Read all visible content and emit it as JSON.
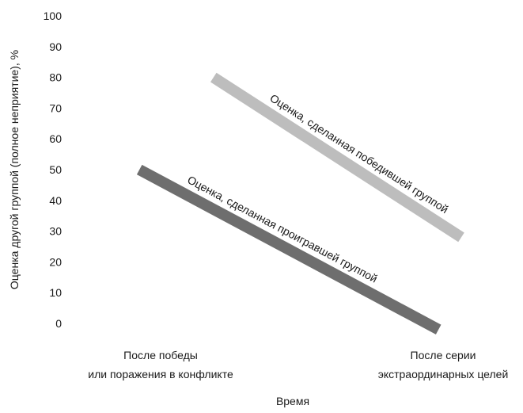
{
  "chart_data": {
    "type": "line",
    "title": "",
    "xlabel": "Время",
    "ylabel": "Оценка другой группой (полное неприятие), %",
    "ylim": [
      0,
      100
    ],
    "yticks": [
      0,
      10,
      20,
      30,
      40,
      50,
      60,
      70,
      80,
      90,
      100
    ],
    "categories": [
      [
        "После победы",
        "или поражения в конфликте"
      ],
      [
        "После серии",
        "экстраординарных целей"
      ]
    ],
    "grid": false,
    "legend": "none",
    "series": [
      {
        "name": "Оценка, сделанная победившей группой",
        "x_start": 0.18,
        "x_end": 1.05,
        "values": [
          80,
          28
        ],
        "color": "#bdbdbd"
      },
      {
        "name": "Оценка, сделанная проигравшей группой",
        "x_start": -0.08,
        "x_end": 0.97,
        "values": [
          50,
          -2
        ],
        "color": "#6e6e6e"
      }
    ]
  }
}
